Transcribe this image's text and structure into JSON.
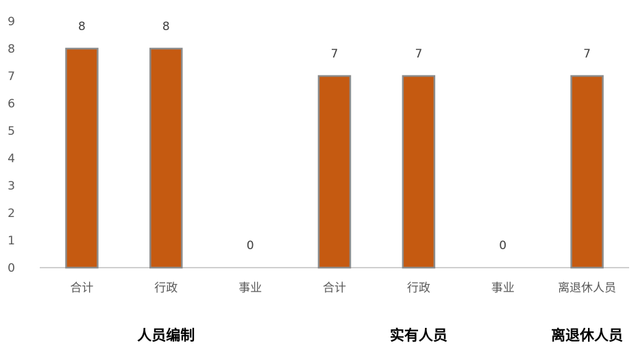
{
  "chart_data": {
    "type": "bar",
    "categories": [
      "合计",
      "行政",
      "事业",
      "合计",
      "行政",
      "事业",
      "离退休人员"
    ],
    "values": [
      8,
      8,
      0,
      7,
      7,
      0,
      7
    ],
    "data_labels": [
      "8",
      "8",
      "0",
      "7",
      "7",
      "0",
      "7"
    ],
    "groups": [
      {
        "label": "人员编制",
        "members": [
          0,
          1,
          2
        ]
      },
      {
        "label": "实有人员",
        "members": [
          3,
          4,
          5
        ]
      },
      {
        "label": "离退休人员",
        "members": [
          6
        ]
      }
    ],
    "yticks": [
      "0",
      "1",
      "2",
      "3",
      "4",
      "5",
      "6",
      "7",
      "8",
      "9"
    ],
    "ylim": [
      0,
      9
    ],
    "grid": false,
    "legend": "none",
    "colors": {
      "bar_fill": "#C55A11",
      "bar_edge": "#8C8C8C",
      "axis": "#BFBFBF"
    }
  }
}
